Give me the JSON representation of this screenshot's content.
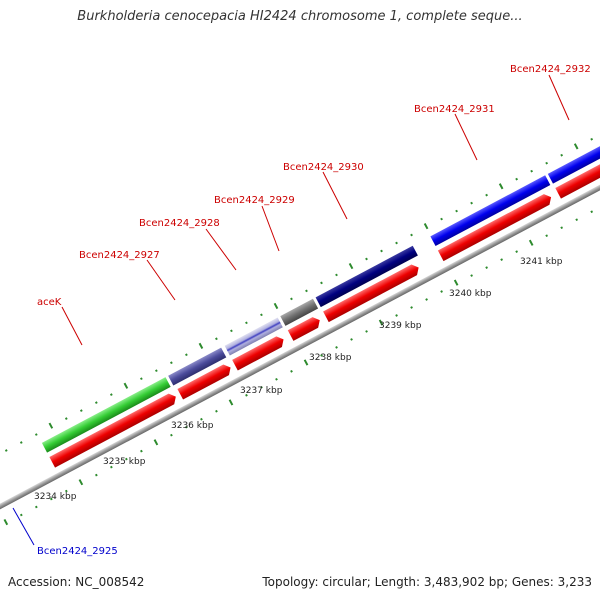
{
  "title": "Burkholderia cenocepacia HI2424 chromosome 1, complete seque...",
  "accession_label": "Accession: NC_008542",
  "stats_label": "Topology: circular; Length: 3,483,902 bp; Genes: 3,233",
  "gene_labels": [
    {
      "name": "aceK",
      "color": "#cc0000"
    },
    {
      "name": "Bcen2424_2927",
      "color": "#cc0000"
    },
    {
      "name": "Bcen2424_2928",
      "color": "#cc0000"
    },
    {
      "name": "Bcen2424_2929",
      "color": "#cc0000"
    },
    {
      "name": "Bcen2424_2930",
      "color": "#cc0000"
    },
    {
      "name": "Bcen2424_2931",
      "color": "#cc0000"
    },
    {
      "name": "Bcen2424_2932",
      "color": "#cc0000"
    },
    {
      "name": "Bcen2424_2925",
      "color": "#0000cc"
    }
  ],
  "tick_labels": [
    "3234 kbp",
    "3235 kbp",
    "3236 kbp",
    "3237 kbp",
    "3238 kbp",
    "3239 kbp",
    "3240 kbp",
    "3241 kbp"
  ],
  "colors": {
    "backbone": "#9a9a9a",
    "tick": "#2e8b2e",
    "cds": "#ee0000",
    "gene_green": "#33cc33",
    "gene_purple": "#4b4b9b",
    "gene_striped": "#6a6ad0",
    "gene_gray": "#707070",
    "gene_navy": "#000080",
    "gene_blue": "#0000ee",
    "gene_light": "#c8c8c8"
  }
}
